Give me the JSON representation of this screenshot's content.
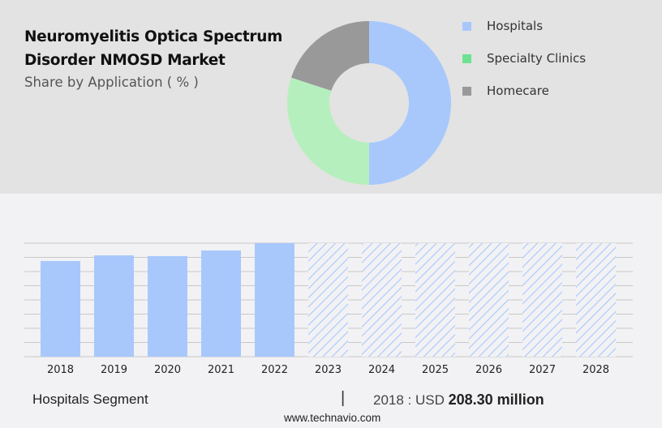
{
  "header": {
    "title_line1": "Neuromyelitis Optica Spectrum",
    "title_line2": "Disorder NMOSD Market",
    "subtitle": "Share by Application ( % )"
  },
  "legend": [
    {
      "label": "Hospitals",
      "color": "#a8c8fc"
    },
    {
      "label": "Specialty Clinics",
      "color": "#6ee293"
    },
    {
      "label": "Homecare",
      "color": "#999999"
    }
  ],
  "footer": {
    "segment": "Hospitals Segment",
    "separator": "|",
    "year_prefix": "2018 : USD",
    "value": "208.30 million",
    "url": "www.technavio.com"
  },
  "chart_data": [
    {
      "type": "pie",
      "title": "Share by Application ( % )",
      "donut": true,
      "categories": [
        "Hospitals",
        "Specialty Clinics",
        "Homecare"
      ],
      "values": [
        50,
        30,
        20
      ],
      "colors": [
        "#a8c8fc",
        "#b6efbe",
        "#999999"
      ]
    },
    {
      "type": "bar",
      "title": "Hospitals Segment",
      "categories": [
        "2018",
        "2019",
        "2020",
        "2021",
        "2022",
        "2023",
        "2024",
        "2025",
        "2026",
        "2027",
        "2028"
      ],
      "values": [
        208.3,
        220.6,
        218.9,
        231.2,
        247.1,
        null,
        null,
        null,
        null,
        null,
        null
      ],
      "forecast": [
        false,
        false,
        false,
        false,
        false,
        true,
        true,
        true,
        true,
        true,
        true
      ],
      "units": "USD million",
      "ylim": [
        0,
        247.1
      ],
      "gridlines": 9,
      "grid": true,
      "bar_color": "#a8c8fc"
    }
  ]
}
